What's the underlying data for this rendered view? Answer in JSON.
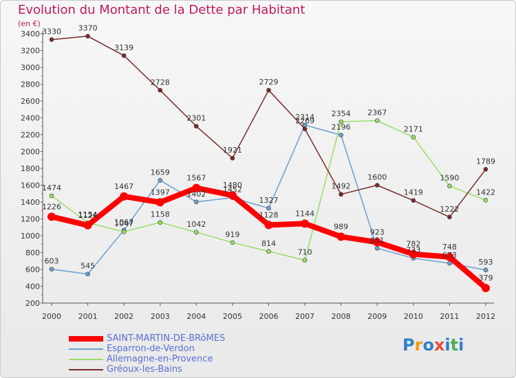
{
  "chart": {
    "title": "Evolution du Montant de la Dette par Habitant",
    "unit_label": "(en €)"
  },
  "brand": {
    "text": "Proxiti",
    "colors": [
      "#2f80c8",
      "#f39c12",
      "#2f80c8",
      "#e74c3c",
      "#2f80c8",
      "#4caf50",
      "#2f80c8"
    ]
  },
  "chart_data": {
    "type": "line",
    "title": "Evolution du Montant de la Dette par Habitant",
    "ylabel": "(en €)",
    "xlabel": "",
    "x": [
      "2000",
      "2001",
      "2002",
      "2003",
      "2004",
      "2005",
      "2006",
      "2007",
      "2008",
      "2009",
      "2010",
      "2011",
      "2012"
    ],
    "ylim": [
      200,
      3400
    ],
    "yticks": [
      200,
      400,
      600,
      800,
      1000,
      1200,
      1400,
      1600,
      1800,
      2000,
      2200,
      2400,
      2600,
      2800,
      3000,
      3200,
      3400
    ],
    "grid": false,
    "legend_position": "bottom-left",
    "series": [
      {
        "name": "SAINT-MARTIN-DE-BRôMES",
        "color": "#ff0000",
        "width": 8,
        "marker": 6,
        "values": [
          1226,
          1124,
          1467,
          1397,
          1567,
          1480,
          1128,
          1144,
          989,
          923,
          782,
          748,
          379
        ]
      },
      {
        "name": "Esparron-de-Verdon",
        "color": "#6a9fd0",
        "width": 1.5,
        "marker": 3,
        "values": [
          603,
          545,
          1067,
          1659,
          1402,
          1452,
          1327,
          2314,
          2196,
          851,
          733,
          673,
          593
        ]
      },
      {
        "name": "Allemagne-en-Provence",
        "color": "#99dd66",
        "width": 1.5,
        "marker": 3,
        "values": [
          1474,
          1154,
          1047,
          1158,
          1042,
          919,
          814,
          710,
          2354,
          2367,
          2171,
          1590,
          1422
        ]
      },
      {
        "name": "Gréoux-les-Bains",
        "color": "#7a2a2a",
        "width": 1.5,
        "marker": 3,
        "values": [
          3330,
          3370,
          3139,
          2728,
          2301,
          1921,
          2729,
          2269,
          1492,
          1600,
          1419,
          1222,
          1789
        ]
      }
    ]
  }
}
